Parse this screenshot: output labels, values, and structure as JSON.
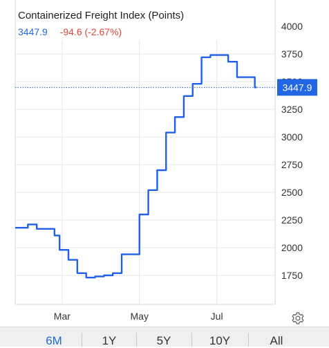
{
  "header": {
    "title": "Containerized Freight Index (Points)",
    "last_value": "3447.9",
    "change": "-94.6 (-2.67%)"
  },
  "tabs": [
    "6M",
    "1Y",
    "5Y",
    "10Y",
    "All"
  ],
  "active_tab": "6M",
  "colors": {
    "line": "#2060e8",
    "accent": "#2266e3",
    "negative": "#e2443a",
    "grid": "#e6e6e6"
  },
  "icons": {
    "settings": "gear-icon"
  },
  "chart_data": {
    "type": "line",
    "title": "Containerized Freight Index (Points)",
    "xlabel": "",
    "ylabel": "",
    "x_tick_labels": [
      "Mar",
      "May",
      "Jul"
    ],
    "y_ticks": [
      1750,
      2000,
      2250,
      2500,
      2750,
      3000,
      3250,
      3500,
      3750,
      4000
    ],
    "ylim": [
      1500,
      4000
    ],
    "xlim": [
      "2020-01-24",
      "2020-08-16"
    ],
    "grid": true,
    "last_value_label": "3447.9",
    "series": [
      {
        "x": [
          "2020-01-24",
          "2020-01-31",
          "2020-02-03",
          "2020-02-07",
          "2020-02-10",
          "2020-02-14",
          "2020-02-21",
          "2020-02-24",
          "2020-02-28",
          "2020-03-06",
          "2020-03-13",
          "2020-03-20",
          "2020-03-27",
          "2020-04-03",
          "2020-04-10",
          "2020-04-17",
          "2020-04-24",
          "2020-05-01",
          "2020-05-08",
          "2020-05-15",
          "2020-05-22",
          "2020-05-29",
          "2020-06-05",
          "2020-06-12",
          "2020-06-19",
          "2020-06-26",
          "2020-07-03",
          "2020-07-10",
          "2020-07-17",
          "2020-07-24",
          "2020-07-31"
        ],
        "y": [
          2180,
          2180,
          2210,
          2210,
          2170,
          2170,
          2170,
          2110,
          1980,
          1890,
          1770,
          1730,
          1740,
          1750,
          1770,
          1940,
          1940,
          2300,
          2520,
          2700,
          3040,
          3180,
          3370,
          3480,
          3720,
          3740,
          3740,
          3680,
          3540,
          3540,
          3447.9
        ]
      }
    ]
  }
}
